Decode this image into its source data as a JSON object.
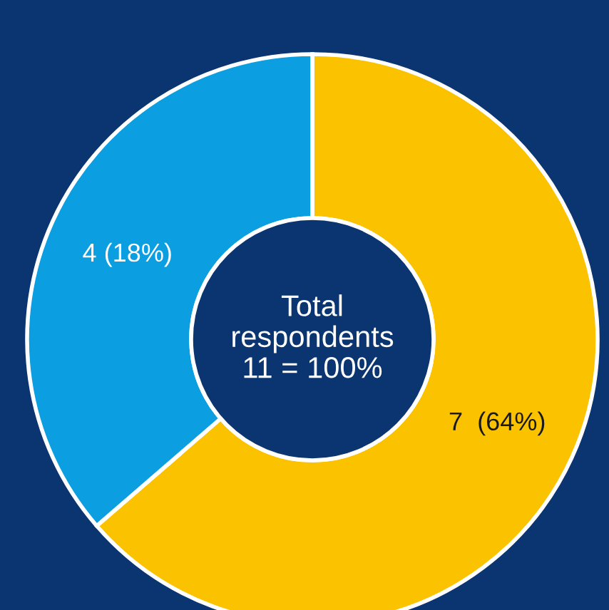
{
  "chart_data": {
    "type": "donut",
    "categories": [
      null,
      null
    ],
    "values": [
      7,
      4
    ],
    "colors": [
      "#fbc200",
      "#0b9ee0"
    ],
    "value_labels": [
      "7  (64%)",
      "4 (18%)"
    ],
    "annotations": [
      "Total\nrespondents\n11 = 100%"
    ]
  }
}
